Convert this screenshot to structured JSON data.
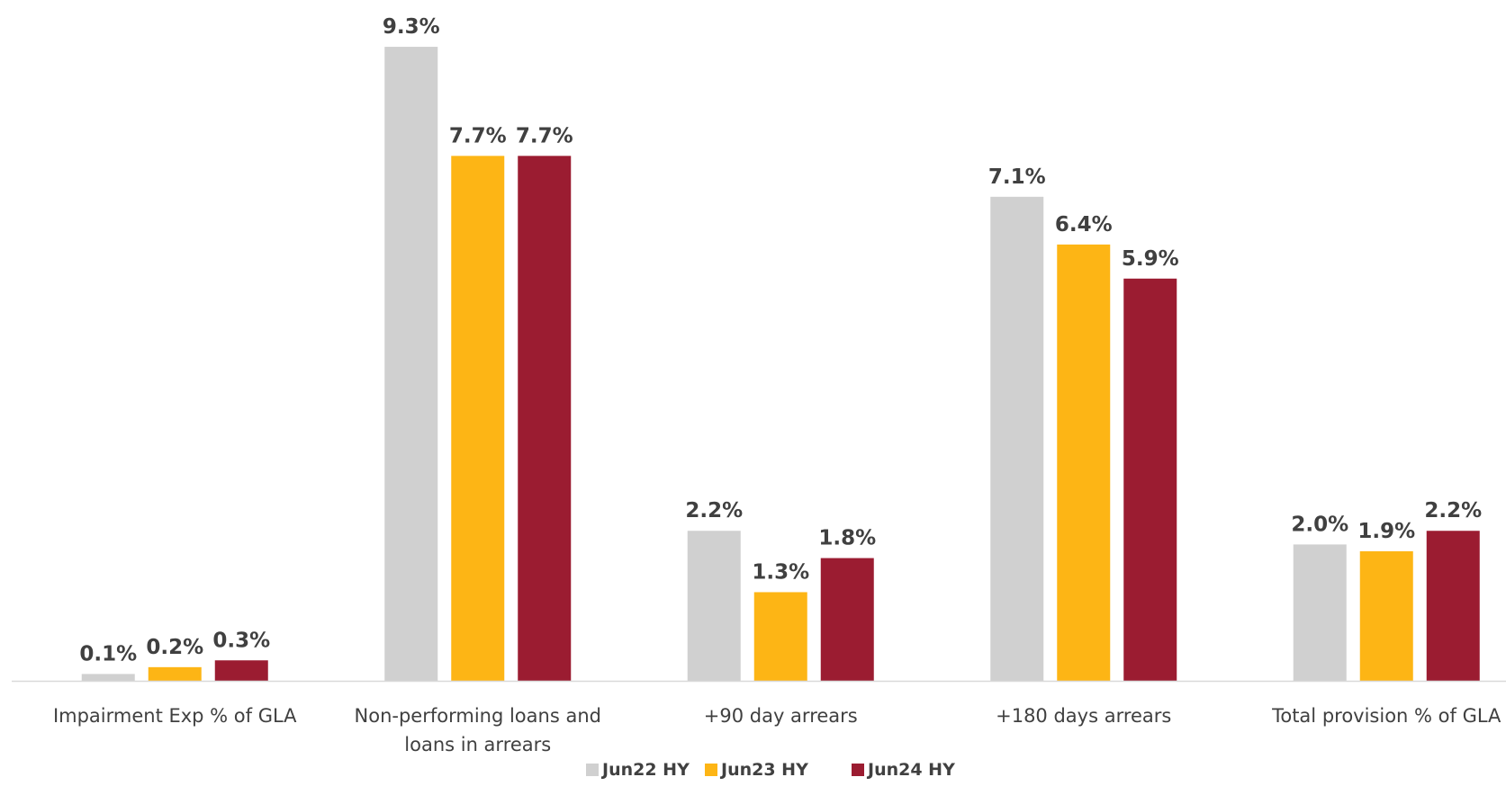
{
  "chart_data": {
    "type": "bar",
    "title": "",
    "xlabel": "",
    "ylabel": "",
    "ylim": [
      0,
      10
    ],
    "grid": false,
    "legend_position": "bottom",
    "categories": [
      [
        "Impairment Exp % of GLA"
      ],
      [
        "Non-performing loans and",
        "loans in arrears"
      ],
      [
        "+90 day arrears"
      ],
      [
        "+180 days arrears"
      ],
      [
        "Total provision % of GLA"
      ]
    ],
    "series": [
      {
        "name": "Jun22 HY",
        "color": "#d0d0d0",
        "values": [
          0.1,
          9.3,
          2.2,
          7.1,
          2.0
        ],
        "labels": [
          "0.1%",
          "9.3%",
          "2.2%",
          "7.1%",
          "2.0%"
        ]
      },
      {
        "name": "Jun23 HY",
        "color": "#fdb515",
        "values": [
          0.2,
          7.7,
          1.3,
          6.4,
          1.9
        ],
        "labels": [
          "0.2%",
          "7.7%",
          "1.3%",
          "6.4%",
          "1.9%"
        ]
      },
      {
        "name": "Jun24 HY",
        "color": "#9b1c31",
        "values": [
          0.3,
          7.7,
          1.8,
          5.9,
          2.2
        ],
        "labels": [
          "0.3%",
          "7.7%",
          "1.8%",
          "5.9%",
          "2.2%"
        ]
      }
    ],
    "axis_color": "#d9d9d9"
  }
}
